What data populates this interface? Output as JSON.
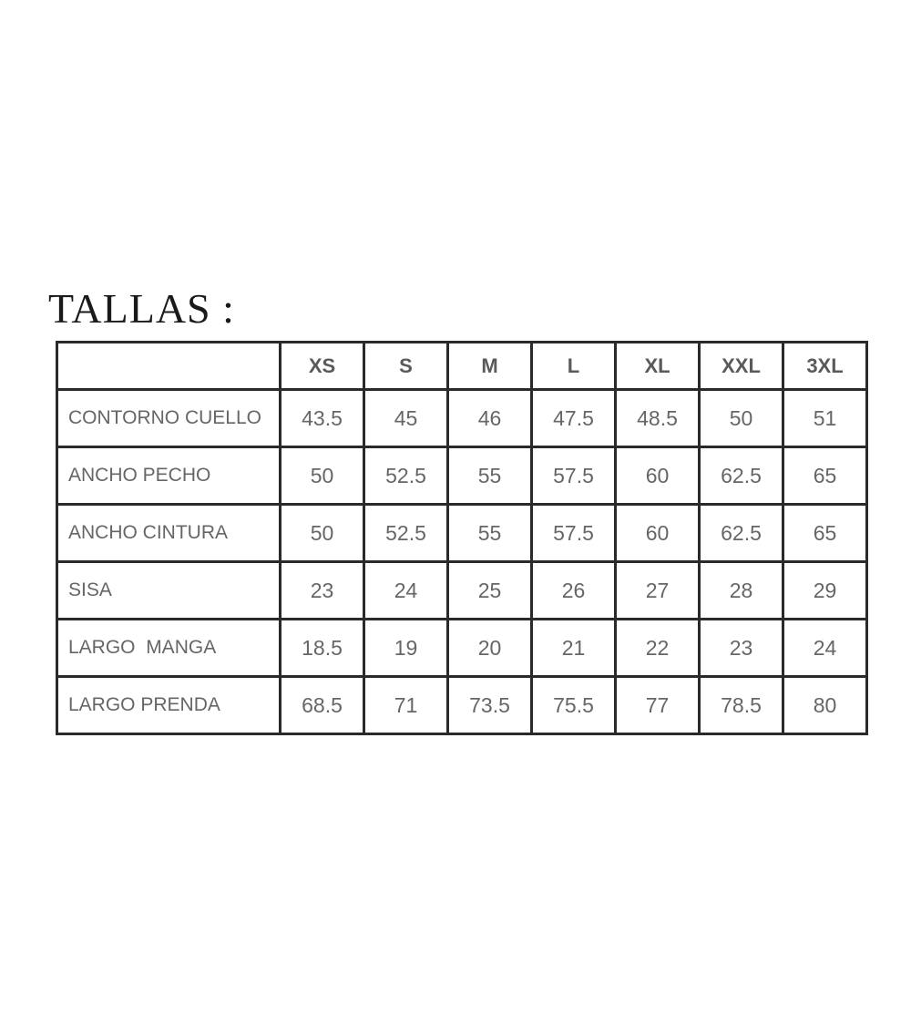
{
  "title": "TALLAS :",
  "table": {
    "sizes": [
      "XS",
      "S",
      "M",
      "L",
      "XL",
      "XXL",
      "3XL"
    ],
    "rows": [
      {
        "label": "CONTORNO CUELLO",
        "values": [
          "43.5",
          "45",
          "46",
          "47.5",
          "48.5",
          "50",
          "51"
        ]
      },
      {
        "label": "ANCHO PECHO",
        "values": [
          "50",
          "52.5",
          "55",
          "57.5",
          "60",
          "62.5",
          "65"
        ]
      },
      {
        "label": "ANCHO CINTURA",
        "values": [
          "50",
          "52.5",
          "55",
          "57.5",
          "60",
          "62.5",
          "65"
        ]
      },
      {
        "label": "SISA",
        "values": [
          "23",
          "24",
          "25",
          "26",
          "27",
          "28",
          "29"
        ]
      },
      {
        "label": "LARGO  MANGA",
        "values": [
          "18.5",
          "19",
          "20",
          "21",
          "22",
          "23",
          "24"
        ]
      },
      {
        "label": "LARGO PRENDA",
        "values": [
          "68.5",
          "71",
          "73.5",
          "75.5",
          "77",
          "78.5",
          "80"
        ]
      }
    ]
  }
}
